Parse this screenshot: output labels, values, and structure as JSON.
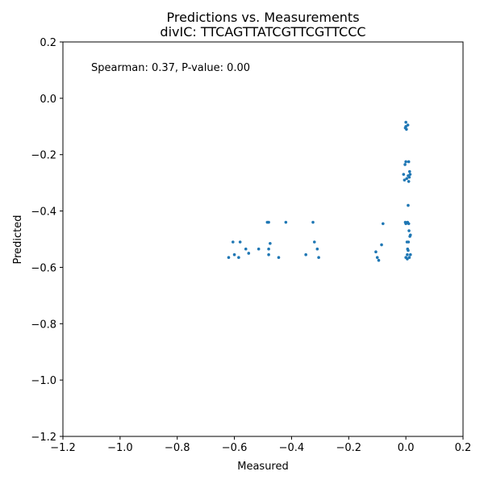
{
  "chart_data": {
    "type": "scatter",
    "title": "Predictions vs. Measurements",
    "subtitle": "divIC: TTCAGTTATCGTTCGTTCCC",
    "xlabel": "Measured",
    "ylabel": "Predicted",
    "xlim": [
      -1.2,
      0.2
    ],
    "ylim": [
      -1.2,
      0.2
    ],
    "xticks": [
      -1.2,
      -1.0,
      -0.8,
      -0.6,
      -0.4,
      -0.2,
      0.0,
      0.2
    ],
    "yticks": [
      0.2,
      0.0,
      -0.2,
      -0.4,
      -0.6,
      -0.8,
      -1.0,
      -1.2
    ],
    "xtick_labels": [
      "−1.2",
      "−1.0",
      "−0.8",
      "−0.6",
      "−0.4",
      "−0.2",
      "0.0",
      "0.2"
    ],
    "ytick_labels": [
      "0.2",
      "0.0",
      "−0.2",
      "−0.4",
      "−0.6",
      "−0.8",
      "−1.0",
      "−1.2"
    ],
    "annotation": "Spearman: 0.37, P-value: 0.00",
    "grid": false,
    "point_color": "#1f77b4",
    "points": [
      {
        "x": -0.62,
        "y": -0.565
      },
      {
        "x": -0.605,
        "y": -0.51
      },
      {
        "x": -0.6,
        "y": -0.555
      },
      {
        "x": -0.585,
        "y": -0.565
      },
      {
        "x": -0.58,
        "y": -0.51
      },
      {
        "x": -0.56,
        "y": -0.535
      },
      {
        "x": -0.55,
        "y": -0.55
      },
      {
        "x": -0.515,
        "y": -0.535
      },
      {
        "x": -0.485,
        "y": -0.44
      },
      {
        "x": -0.48,
        "y": -0.44
      },
      {
        "x": -0.48,
        "y": -0.535
      },
      {
        "x": -0.48,
        "y": -0.555
      },
      {
        "x": -0.475,
        "y": -0.515
      },
      {
        "x": -0.445,
        "y": -0.565
      },
      {
        "x": -0.42,
        "y": -0.44
      },
      {
        "x": -0.35,
        "y": -0.555
      },
      {
        "x": -0.325,
        "y": -0.44
      },
      {
        "x": -0.32,
        "y": -0.51
      },
      {
        "x": -0.31,
        "y": -0.535
      },
      {
        "x": -0.305,
        "y": -0.565
      },
      {
        "x": -0.105,
        "y": -0.545
      },
      {
        "x": -0.1,
        "y": -0.565
      },
      {
        "x": -0.095,
        "y": -0.575
      },
      {
        "x": -0.085,
        "y": -0.52
      },
      {
        "x": -0.08,
        "y": -0.445
      },
      {
        "x": -0.008,
        "y": -0.27
      },
      {
        "x": -0.005,
        "y": -0.29
      },
      {
        "x": -0.003,
        "y": -0.235
      },
      {
        "x": -0.002,
        "y": -0.44
      },
      {
        "x": -0.002,
        "y": -0.105
      },
      {
        "x": 0.0,
        "y": -0.1
      },
      {
        "x": 0.0,
        "y": -0.225
      },
      {
        "x": 0.0,
        "y": -0.445
      },
      {
        "x": 0.0,
        "y": -0.565
      },
      {
        "x": 0.0,
        "y": -0.085
      },
      {
        "x": 0.002,
        "y": -0.11
      },
      {
        "x": 0.003,
        "y": -0.285
      },
      {
        "x": 0.004,
        "y": -0.51
      },
      {
        "x": 0.005,
        "y": -0.555
      },
      {
        "x": 0.005,
        "y": -0.57
      },
      {
        "x": 0.006,
        "y": -0.44
      },
      {
        "x": 0.006,
        "y": -0.535
      },
      {
        "x": 0.007,
        "y": -0.095
      },
      {
        "x": 0.008,
        "y": -0.38
      },
      {
        "x": 0.008,
        "y": -0.275
      },
      {
        "x": 0.008,
        "y": -0.54
      },
      {
        "x": 0.009,
        "y": -0.51
      },
      {
        "x": 0.01,
        "y": -0.225
      },
      {
        "x": 0.01,
        "y": -0.295
      },
      {
        "x": 0.01,
        "y": -0.445
      },
      {
        "x": 0.011,
        "y": -0.47
      },
      {
        "x": 0.012,
        "y": -0.28
      },
      {
        "x": 0.012,
        "y": -0.565
      },
      {
        "x": 0.013,
        "y": -0.26
      },
      {
        "x": 0.014,
        "y": -0.49
      },
      {
        "x": 0.015,
        "y": -0.27
      },
      {
        "x": 0.016,
        "y": -0.555
      },
      {
        "x": 0.016,
        "y": -0.485
      }
    ]
  }
}
